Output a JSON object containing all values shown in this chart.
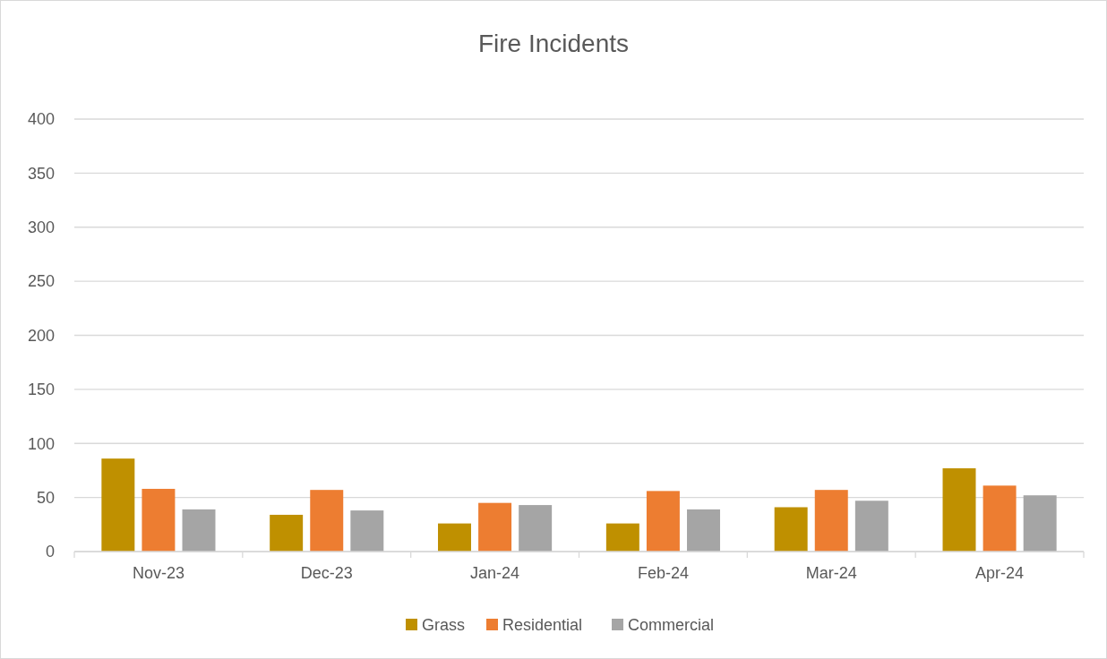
{
  "chart_data": {
    "type": "bar",
    "title": "Fire Incidents",
    "categories": [
      "Nov-23",
      "Dec-23",
      "Jan-24",
      "Feb-24",
      "Mar-24",
      "Apr-24"
    ],
    "series": [
      {
        "name": "Grass",
        "color": "#bf9000",
        "values": [
          86,
          34,
          26,
          26,
          41,
          77
        ]
      },
      {
        "name": "Residential",
        "color": "#ed7d31",
        "values": [
          58,
          57,
          45,
          56,
          57,
          61
        ]
      },
      {
        "name": "Commercial",
        "color": "#a5a5a5",
        "values": [
          39,
          38,
          43,
          39,
          47,
          52
        ]
      }
    ],
    "ylim": [
      0,
      400
    ],
    "yticks": [
      0,
      50,
      100,
      150,
      200,
      250,
      300,
      350,
      400
    ],
    "grid": "y",
    "legend": "bottom"
  }
}
